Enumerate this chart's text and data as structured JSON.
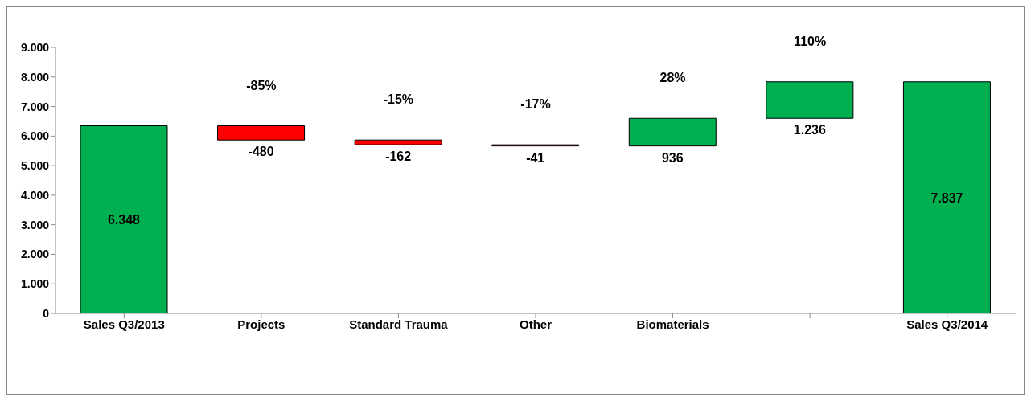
{
  "chart_data": {
    "type": "bar",
    "categories": [
      "Sales Q3/2013",
      "Projects",
      "Standard Trauma",
      "Other",
      "Biomaterials",
      null,
      "Sales Q3/2014"
    ],
    "base": [
      0,
      6348,
      5868,
      5706,
      5665,
      6601,
      0
    ],
    "values": [
      6348,
      -480,
      -162,
      -41,
      936,
      1236,
      7837
    ],
    "colors": [
      "#00b050",
      "#ff0000",
      "#ff0000",
      "#ff0000",
      "#00b050",
      "#00b050",
      "#00b050"
    ],
    "value_labels": [
      "6.348",
      "-480",
      "-162",
      "-41",
      "936",
      "1.236",
      "7.837"
    ],
    "ylim": [
      0,
      9000
    ],
    "yticks": [
      {
        "value": 0,
        "label": "0"
      },
      {
        "value": 1000,
        "label": "1.000"
      },
      {
        "value": 2000,
        "label": "2.000"
      },
      {
        "value": 3000,
        "label": "3.000"
      },
      {
        "value": 4000,
        "label": "4.000"
      },
      {
        "value": 5000,
        "label": "5.000"
      },
      {
        "value": 6000,
        "label": "6.000"
      },
      {
        "value": 7000,
        "label": "7.000"
      },
      {
        "value": 8000,
        "label": "8.000"
      },
      {
        "value": 9000,
        "label": "9.000"
      }
    ],
    "annotations": [
      "-85%",
      "-15%",
      "-17%",
      "28%",
      "110%"
    ],
    "grid": false,
    "legend": false
  }
}
